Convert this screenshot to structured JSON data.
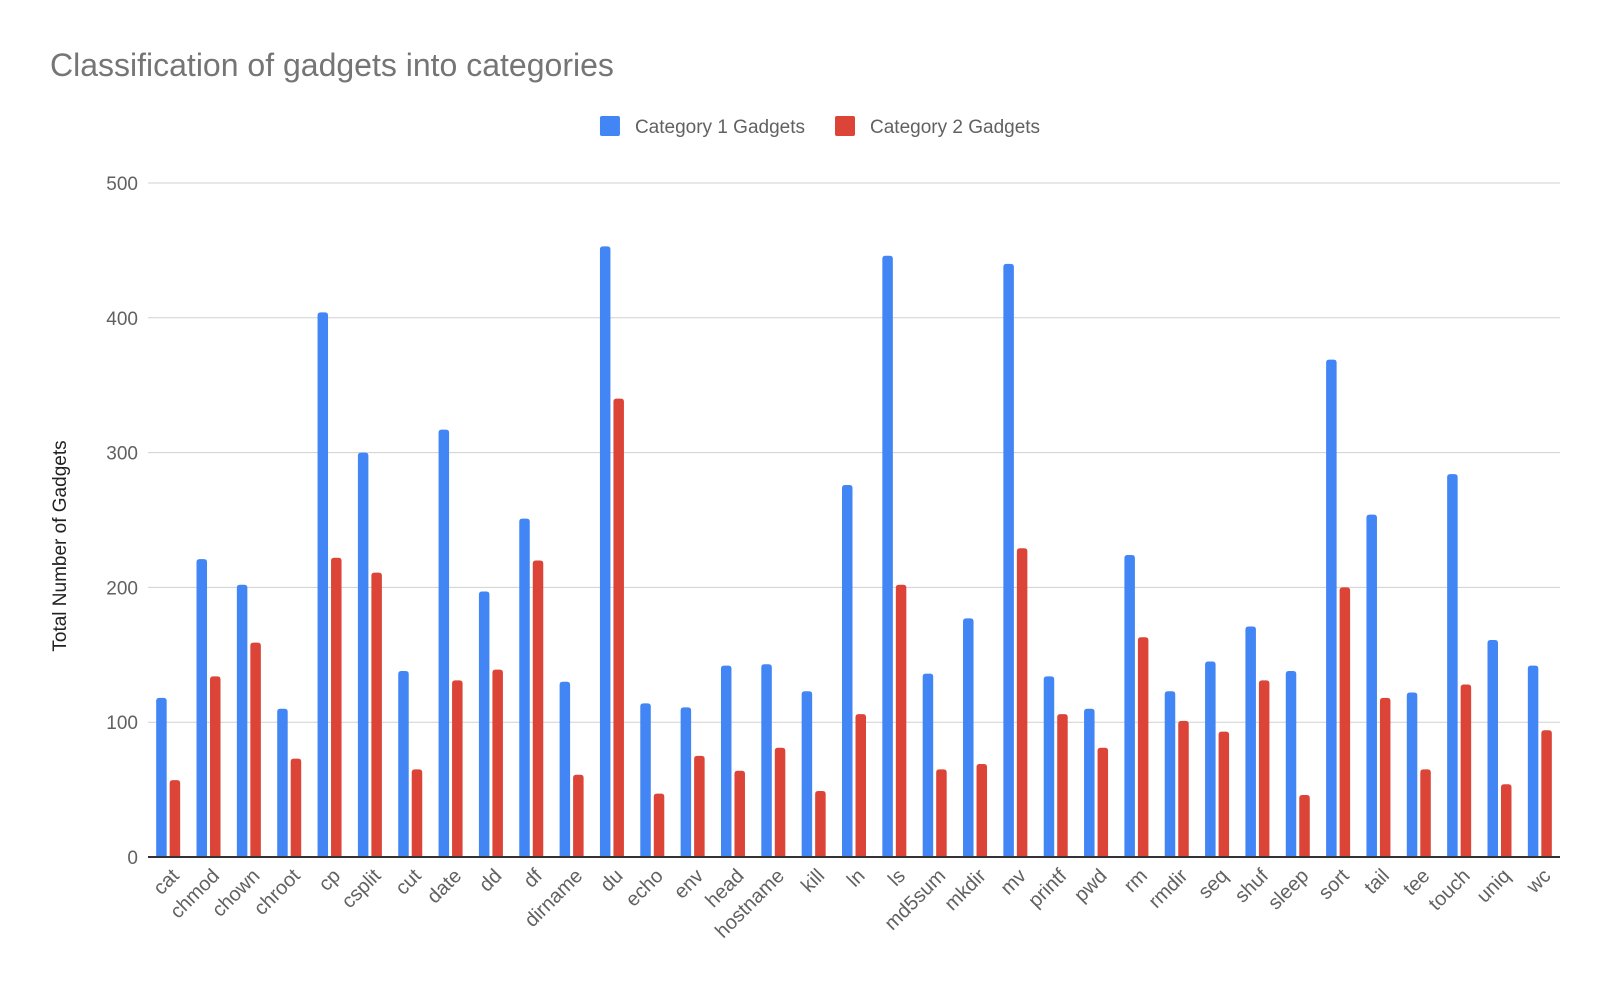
{
  "chart_data": {
    "type": "bar",
    "title": "Classification of gadgets into categories",
    "xlabel": "",
    "ylabel": "Total Number of Gadgets",
    "ylim": [
      0,
      500
    ],
    "yticks": [
      0,
      100,
      200,
      300,
      400,
      500
    ],
    "grid": true,
    "legend_position": "top",
    "categories": [
      "cat",
      "chmod",
      "chown",
      "chroot",
      "cp",
      "csplit",
      "cut",
      "date",
      "dd",
      "df",
      "dirname",
      "du",
      "echo",
      "env",
      "head",
      "hostname",
      "kill",
      "ln",
      "ls",
      "md5sum",
      "mkdir",
      "mv",
      "printf",
      "pwd",
      "rm",
      "rmdir",
      "seq",
      "shuf",
      "sleep",
      "sort",
      "tail",
      "tee",
      "touch",
      "uniq",
      "wc"
    ],
    "series": [
      {
        "name": "Category 1 Gadgets",
        "color": "#4285f4",
        "values": [
          118,
          221,
          202,
          110,
          404,
          300,
          138,
          317,
          197,
          251,
          130,
          453,
          114,
          111,
          142,
          143,
          123,
          276,
          446,
          136,
          177,
          440,
          134,
          110,
          224,
          123,
          145,
          171,
          138,
          369,
          254,
          122,
          284,
          161,
          142
        ]
      },
      {
        "name": "Category 2 Gadgets",
        "color": "#db4437",
        "values": [
          57,
          134,
          159,
          73,
          222,
          211,
          65,
          131,
          139,
          220,
          61,
          340,
          47,
          75,
          64,
          81,
          49,
          106,
          202,
          65,
          69,
          229,
          106,
          81,
          163,
          101,
          93,
          131,
          46,
          200,
          118,
          65,
          128,
          54,
          94
        ]
      }
    ]
  }
}
